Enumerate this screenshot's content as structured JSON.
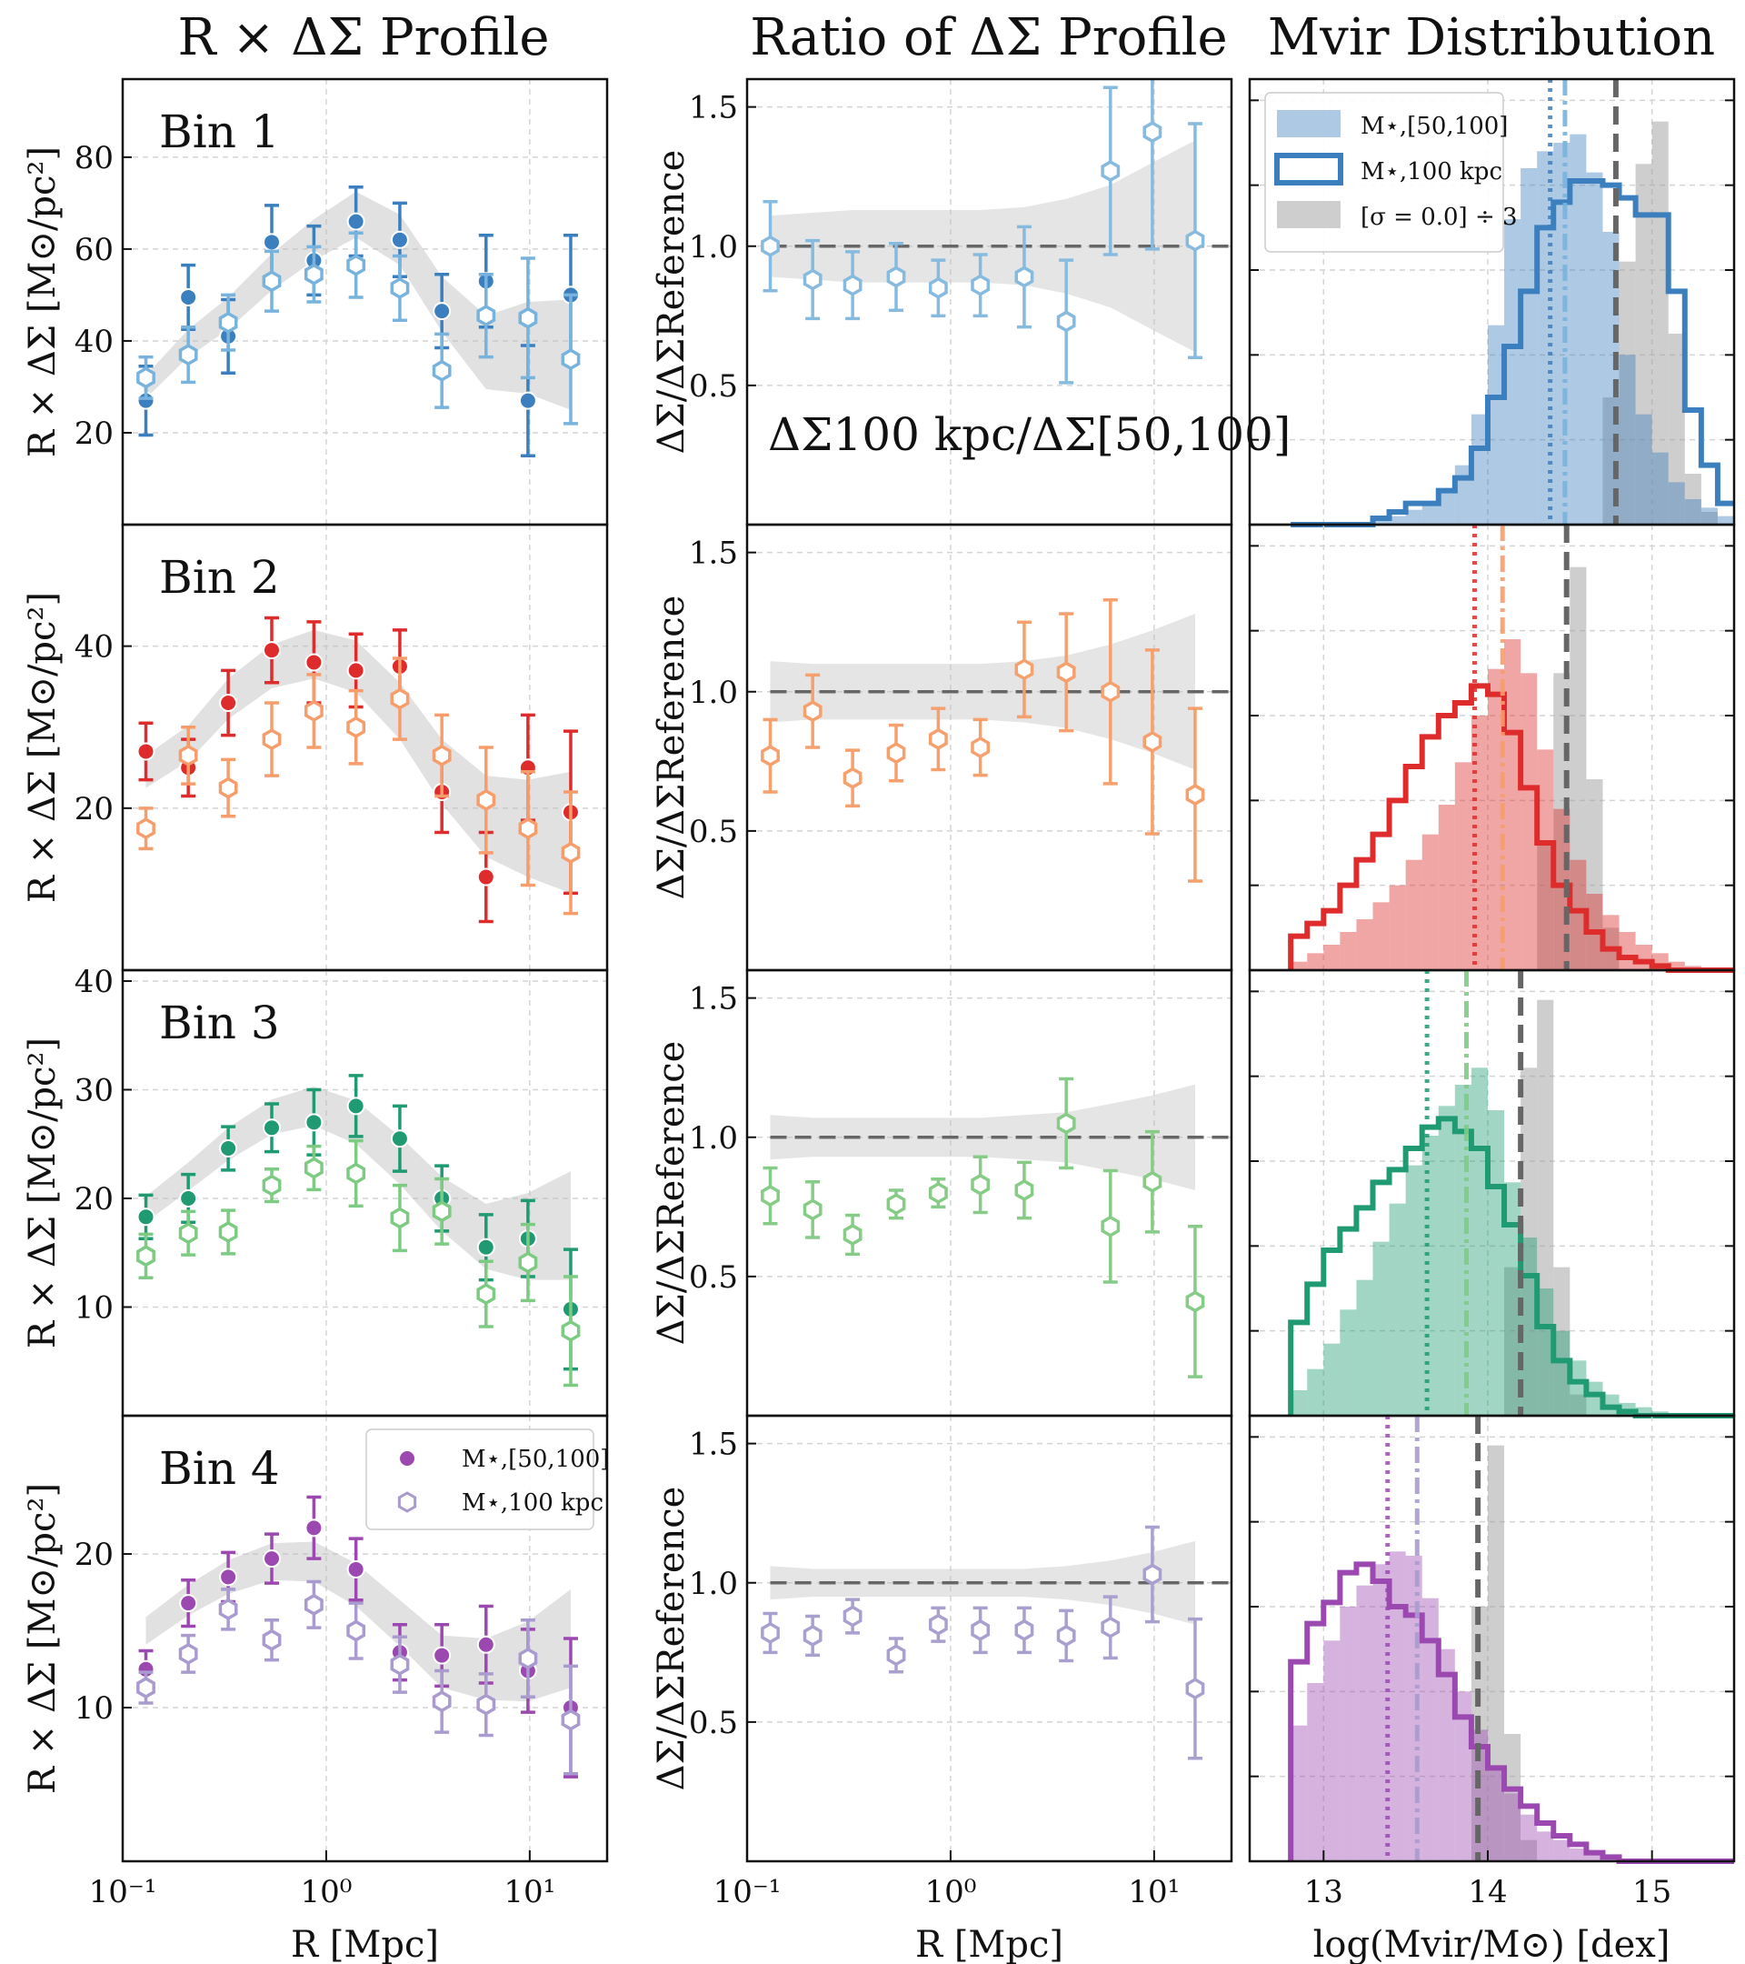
{
  "titles": {
    "profile": "R × ΔΣ Profile",
    "ratio": "Ratio of ΔΣ Profile",
    "mvir": "Mvir Distribution"
  },
  "axis_labels": {
    "profile_y": "R × ΔΣ [M⊙/pc²]",
    "ratio_y": "ΔΣ/ΔΣReference",
    "r_x": "R [Mpc]",
    "mvir_x": "log(Mvir/M⊙) [dex]"
  },
  "ratio_annotation": "ΔΣ100 kpc/ΔΣ[50,100]",
  "legend_profile": {
    "filled": "M⋆,[50,100]",
    "open": "M⋆,100 kpc"
  },
  "legend_mvir": {
    "filled": "M⋆,[50,100]",
    "open": "M⋆,100 kpc",
    "gray": "[σ = 0.0] ÷ 3"
  },
  "r_ticks": [
    "10⁻¹",
    "10⁰",
    "10¹"
  ],
  "mvir_ticks": [
    "13",
    "14",
    "15"
  ],
  "ratio_ticks": [
    "0.5",
    "1.0",
    "1.5"
  ],
  "chart_data": {
    "type": "scatter",
    "r": [
      0.13,
      0.21,
      0.33,
      0.54,
      0.87,
      1.4,
      2.3,
      3.7,
      6.1,
      9.8,
      15.9
    ],
    "bins": [
      {
        "label": "Bin 1",
        "colors": {
          "filled": "#3b7fbf",
          "open": "#78b3dd",
          "ratio": "#86bbdf"
        },
        "profile_ylim": [
          0,
          97
        ],
        "profile_yticks": [
          20,
          40,
          60,
          80
        ],
        "filled": [
          27.0,
          49.5,
          41.0,
          61.5,
          57.5,
          66.0,
          62.0,
          46.5,
          53.0,
          27.0,
          50.0
        ],
        "filled_err": [
          7.5,
          7.0,
          8.0,
          8.0,
          7.5,
          7.5,
          8.0,
          8.0,
          10.0,
          12.0,
          13.0
        ],
        "open": [
          32.0,
          37.0,
          44.0,
          53.0,
          54.5,
          56.5,
          51.5,
          33.5,
          45.5,
          45.0,
          36.0
        ],
        "open_err": [
          4.5,
          6.0,
          6.0,
          6.5,
          6.0,
          7.0,
          7.0,
          8.0,
          9.0,
          13.0,
          14.0
        ],
        "band_mid": [
          30.0,
          39.5,
          46.0,
          55.0,
          62.0,
          67.5,
          62.0,
          48.0,
          37.5,
          38.5,
          37.0
        ],
        "band_half": [
          2.5,
          3.0,
          3.5,
          4.0,
          4.5,
          5.0,
          5.5,
          6.0,
          8.0,
          10.0,
          12.0
        ],
        "ratio": [
          1.0,
          0.88,
          0.86,
          0.89,
          0.85,
          0.86,
          0.89,
          0.73,
          1.27,
          1.41,
          1.02
        ],
        "ratio_err": [
          0.16,
          0.14,
          0.12,
          0.12,
          0.1,
          0.11,
          0.18,
          0.22,
          0.3,
          0.42,
          0.42
        ],
        "ratio_band": [
          0.11,
          0.12,
          0.13,
          0.13,
          0.13,
          0.13,
          0.14,
          0.17,
          0.22,
          0.3,
          0.38
        ],
        "mvir": {
          "bin_edges": [
            12.8,
            12.9,
            13.0,
            13.1,
            13.2,
            13.3,
            13.4,
            13.5,
            13.6,
            13.7,
            13.8,
            13.9,
            14.0,
            14.1,
            14.2,
            14.3,
            14.4,
            14.5,
            14.6,
            14.7,
            14.8,
            14.9,
            15.0,
            15.1,
            15.2,
            15.3,
            15.4,
            15.5
          ],
          "filled": [
            0.0,
            0.0,
            0.0,
            0.0,
            0.005,
            0.01,
            0.02,
            0.035,
            0.055,
            0.08,
            0.14,
            0.26,
            0.47,
            0.72,
            0.84,
            0.88,
            0.9,
            0.92,
            0.83,
            0.69,
            0.4,
            0.26,
            0.17,
            0.1,
            0.06,
            0.04,
            0.02
          ],
          "open": [
            0.0,
            0.0,
            0.0,
            0.0,
            0.0,
            0.015,
            0.03,
            0.05,
            0.05,
            0.08,
            0.11,
            0.18,
            0.3,
            0.42,
            0.55,
            0.7,
            0.76,
            0.81,
            0.81,
            0.8,
            0.77,
            0.73,
            0.73,
            0.55,
            0.27,
            0.14,
            0.05
          ],
          "gray": [
            0.0,
            0.0,
            0.0,
            0.0,
            0.0,
            0.0,
            0.0,
            0.0,
            0.0,
            0.0,
            0.0,
            0.0,
            0.0,
            0.0,
            0.0,
            0.0,
            0.0,
            0.0,
            0.0,
            0.3,
            0.62,
            0.85,
            0.95,
            0.45,
            0.12,
            0.03,
            0.0
          ],
          "ylim": [
            0,
            1.05
          ],
          "vline_dotted": 14.38,
          "vline_dashdot": 14.47,
          "vline_dashed": 14.78
        }
      },
      {
        "label": "Bin 2",
        "colors": {
          "filled": "#de2b2b",
          "open": "#f79d6b",
          "ratio": "#f5a06d"
        },
        "profile_ylim": [
          0,
          55
        ],
        "profile_yticks": [
          20,
          40
        ],
        "filled": [
          27.0,
          25.0,
          33.0,
          39.5,
          38.0,
          37.0,
          37.5,
          22.0,
          11.5,
          25.0,
          19.5
        ],
        "filled_err": [
          3.5,
          3.5,
          4.0,
          4.0,
          5.0,
          4.5,
          4.5,
          5.0,
          5.5,
          6.5,
          10.0
        ],
        "open": [
          17.5,
          26.5,
          22.5,
          28.5,
          32.0,
          30.0,
          33.5,
          26.5,
          21.0,
          17.5,
          14.5
        ],
        "open_err": [
          2.5,
          3.5,
          3.5,
          4.5,
          4.5,
          4.5,
          5.0,
          5.0,
          6.5,
          7.0,
          7.5
        ],
        "band_mid": [
          24.5,
          28.0,
          33.5,
          37.5,
          39.0,
          37.5,
          32.0,
          24.5,
          19.0,
          17.5,
          17.0
        ],
        "band_half": [
          2.0,
          2.2,
          2.5,
          2.7,
          3.0,
          3.2,
          3.5,
          4.0,
          5.0,
          6.0,
          7.5
        ],
        "ratio": [
          0.77,
          0.93,
          0.69,
          0.78,
          0.83,
          0.8,
          1.08,
          1.07,
          1.0,
          0.82,
          0.63
        ],
        "ratio_err": [
          0.13,
          0.13,
          0.1,
          0.1,
          0.11,
          0.1,
          0.17,
          0.21,
          0.33,
          0.33,
          0.31
        ],
        "ratio_band": [
          0.11,
          0.1,
          0.1,
          0.1,
          0.1,
          0.1,
          0.11,
          0.13,
          0.17,
          0.22,
          0.28
        ],
        "mvir": {
          "bin_edges": [
            12.8,
            12.9,
            13.0,
            13.1,
            13.2,
            13.3,
            13.4,
            13.5,
            13.6,
            13.7,
            13.8,
            13.9,
            14.0,
            14.1,
            14.2,
            14.3,
            14.4,
            14.5,
            14.6,
            14.7,
            14.8,
            14.9,
            15.0,
            15.1,
            15.2,
            15.3,
            15.4,
            15.5
          ],
          "filled": [
            0.02,
            0.04,
            0.06,
            0.09,
            0.12,
            0.16,
            0.2,
            0.26,
            0.32,
            0.39,
            0.49,
            0.6,
            0.71,
            0.78,
            0.7,
            0.52,
            0.38,
            0.26,
            0.18,
            0.13,
            0.09,
            0.06,
            0.04,
            0.02,
            0.01,
            0.0,
            0.0
          ],
          "open": [
            0.08,
            0.11,
            0.14,
            0.2,
            0.26,
            0.32,
            0.4,
            0.48,
            0.55,
            0.6,
            0.63,
            0.67,
            0.65,
            0.56,
            0.43,
            0.3,
            0.2,
            0.14,
            0.09,
            0.05,
            0.03,
            0.02,
            0.01,
            0.0,
            0.0,
            0.0,
            0.0
          ],
          "gray": [
            0.0,
            0.0,
            0.0,
            0.0,
            0.0,
            0.0,
            0.0,
            0.0,
            0.0,
            0.0,
            0.0,
            0.0,
            0.0,
            0.0,
            0.0,
            0.3,
            0.7,
            0.95,
            0.45,
            0.1,
            0.0,
            0.0,
            0.0,
            0.0,
            0.0,
            0.0,
            0.0
          ],
          "ylim": [
            0,
            1.05
          ],
          "vline_dotted": 13.92,
          "vline_dashdot": 14.09,
          "vline_dashed": 14.48
        }
      },
      {
        "label": "Bin 3",
        "colors": {
          "filled": "#1f9a73",
          "open": "#7dcb82",
          "ratio": "#86cc86"
        },
        "profile_ylim": [
          0,
          41
        ],
        "profile_yticks": [
          10,
          20,
          30,
          40
        ],
        "filled": [
          18.3,
          20.0,
          24.6,
          26.5,
          27.0,
          28.5,
          25.5,
          20.0,
          15.5,
          16.3,
          9.8
        ],
        "filled_err": [
          2.0,
          2.2,
          2.0,
          2.2,
          3.0,
          2.8,
          3.0,
          3.0,
          3.0,
          3.5,
          5.5
        ],
        "open": [
          14.7,
          16.8,
          16.9,
          21.2,
          22.8,
          22.3,
          18.2,
          18.8,
          11.2,
          14.1,
          7.8
        ],
        "open_err": [
          2.0,
          2.0,
          2.0,
          1.5,
          2.0,
          3.0,
          3.0,
          3.0,
          3.0,
          3.5,
          5.0
        ],
        "band_mid": [
          19.0,
          22.0,
          25.0,
          27.5,
          28.5,
          27.0,
          23.5,
          19.5,
          16.5,
          16.5,
          17.5
        ],
        "band_half": [
          1.2,
          1.3,
          1.5,
          1.6,
          1.8,
          2.0,
          2.2,
          2.5,
          3.0,
          4.0,
          5.0
        ],
        "ratio": [
          0.79,
          0.74,
          0.65,
          0.76,
          0.8,
          0.83,
          0.81,
          1.05,
          0.68,
          0.84,
          0.41
        ],
        "ratio_err": [
          0.1,
          0.1,
          0.07,
          0.05,
          0.05,
          0.1,
          0.1,
          0.16,
          0.2,
          0.18,
          0.27
        ],
        "ratio_band": [
          0.08,
          0.07,
          0.07,
          0.07,
          0.07,
          0.07,
          0.08,
          0.09,
          0.12,
          0.15,
          0.19
        ],
        "mvir": {
          "bin_edges": [
            12.8,
            12.9,
            13.0,
            13.1,
            13.2,
            13.3,
            13.4,
            13.5,
            13.6,
            13.7,
            13.8,
            13.9,
            14.0,
            14.1,
            14.2,
            14.3,
            14.4,
            14.5,
            14.6,
            14.7,
            14.8,
            14.9,
            15.0,
            15.1,
            15.2,
            15.3,
            15.4,
            15.5
          ],
          "filled": [
            0.06,
            0.11,
            0.17,
            0.25,
            0.32,
            0.41,
            0.5,
            0.59,
            0.66,
            0.73,
            0.78,
            0.82,
            0.72,
            0.55,
            0.42,
            0.3,
            0.2,
            0.13,
            0.08,
            0.05,
            0.03,
            0.02,
            0.01,
            0.0,
            0.0,
            0.0,
            0.0
          ],
          "open": [
            0.22,
            0.31,
            0.39,
            0.44,
            0.49,
            0.55,
            0.58,
            0.63,
            0.68,
            0.7,
            0.67,
            0.63,
            0.54,
            0.45,
            0.33,
            0.21,
            0.13,
            0.08,
            0.05,
            0.02,
            0.01,
            0.0,
            0.0,
            0.0,
            0.0,
            0.0,
            0.0
          ],
          "gray": [
            0.0,
            0.0,
            0.0,
            0.0,
            0.0,
            0.0,
            0.0,
            0.0,
            0.0,
            0.0,
            0.0,
            0.0,
            0.0,
            0.35,
            0.82,
            0.98,
            0.35,
            0.05,
            0.0,
            0.0,
            0.0,
            0.0,
            0.0,
            0.0,
            0.0,
            0.0,
            0.0
          ],
          "ylim": [
            0,
            1.05
          ],
          "vline_dotted": 13.63,
          "vline_dashdot": 13.87,
          "vline_dashed": 14.2
        }
      },
      {
        "label": "Bin 4",
        "colors": {
          "filled": "#9b49b0",
          "open": "#a99bd0",
          "ratio": "#aaa0cf"
        },
        "profile_ylim": [
          0,
          29
        ],
        "profile_yticks": [
          10,
          20
        ],
        "filled": [
          12.5,
          16.8,
          18.5,
          19.7,
          21.7,
          19.0,
          13.6,
          13.4,
          14.1,
          12.4,
          10.0
        ],
        "filled_err": [
          1.2,
          1.5,
          1.6,
          1.6,
          2.0,
          2.0,
          1.8,
          2.0,
          2.5,
          2.7,
          4.5
        ],
        "open": [
          11.3,
          13.5,
          16.4,
          14.4,
          16.7,
          15.0,
          12.8,
          10.4,
          10.2,
          13.2,
          9.2
        ],
        "open_err": [
          1.0,
          1.2,
          1.3,
          1.3,
          1.5,
          1.8,
          1.8,
          2.0,
          2.0,
          2.5,
          3.5
        ],
        "band_mid": [
          15.0,
          17.0,
          18.5,
          19.5,
          19.5,
          18.0,
          15.5,
          13.0,
          12.5,
          13.0,
          14.5
        ],
        "band_half": [
          0.9,
          1.0,
          1.1,
          1.2,
          1.3,
          1.4,
          1.5,
          1.7,
          2.0,
          2.6,
          3.2
        ],
        "ratio": [
          0.82,
          0.81,
          0.88,
          0.74,
          0.85,
          0.83,
          0.83,
          0.81,
          0.84,
          1.03,
          0.62
        ],
        "ratio_err": [
          0.07,
          0.07,
          0.06,
          0.06,
          0.06,
          0.08,
          0.08,
          0.09,
          0.11,
          0.17,
          0.25
        ],
        "ratio_band": [
          0.06,
          0.05,
          0.05,
          0.05,
          0.05,
          0.05,
          0.05,
          0.06,
          0.08,
          0.11,
          0.15
        ],
        "mvir": {
          "bin_edges": [
            12.8,
            12.9,
            13.0,
            13.1,
            13.2,
            13.3,
            13.4,
            13.5,
            13.6,
            13.7,
            13.8,
            13.9,
            14.0,
            14.1,
            14.2,
            14.3,
            14.4,
            14.5,
            14.6,
            14.7,
            14.8,
            14.9,
            15.0,
            15.1,
            15.2,
            15.3,
            15.4,
            15.5
          ],
          "filled": [
            0.32,
            0.42,
            0.52,
            0.6,
            0.65,
            0.7,
            0.73,
            0.72,
            0.62,
            0.5,
            0.4,
            0.31,
            0.22,
            0.16,
            0.11,
            0.07,
            0.05,
            0.03,
            0.02,
            0.01,
            0.0,
            0.0,
            0.0,
            0.0,
            0.0,
            0.0,
            0.0
          ],
          "open": [
            0.47,
            0.56,
            0.61,
            0.68,
            0.7,
            0.66,
            0.6,
            0.58,
            0.52,
            0.44,
            0.34,
            0.27,
            0.22,
            0.17,
            0.13,
            0.09,
            0.06,
            0.04,
            0.02,
            0.01,
            0.0,
            0.0,
            0.0,
            0.0,
            0.0,
            0.0,
            0.0
          ],
          "gray": [
            0.0,
            0.0,
            0.0,
            0.0,
            0.0,
            0.0,
            0.0,
            0.0,
            0.0,
            0.0,
            0.0,
            0.6,
            0.98,
            0.3,
            0.05,
            0.0,
            0.0,
            0.0,
            0.0,
            0.0,
            0.0,
            0.0,
            0.0,
            0.0,
            0.0,
            0.0,
            0.0
          ],
          "ylim": [
            0,
            1.05
          ],
          "vline_dotted": 13.39,
          "vline_dashdot": 13.57,
          "vline_dashed": 13.94
        }
      }
    ],
    "r_xlim": [
      0.1,
      24
    ],
    "ratio_ylim": [
      0,
      1.6
    ],
    "mvir_xlim": [
      12.55,
      15.5
    ]
  }
}
